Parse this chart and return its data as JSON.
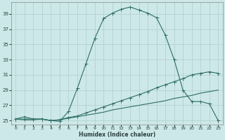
{
  "xlabel": "Humidex (Indice chaleur)",
  "bg_color": "#cde8e8",
  "grid_color": "#b0cccc",
  "line_color": "#2e6e65",
  "ylim": [
    24.5,
    40.5
  ],
  "xlim": [
    -0.5,
    23.5
  ],
  "yticks": [
    25,
    27,
    29,
    31,
    33,
    35,
    37,
    39
  ],
  "xticks": [
    0,
    1,
    2,
    3,
    4,
    5,
    6,
    7,
    8,
    9,
    10,
    11,
    12,
    13,
    14,
    15,
    16,
    17,
    18,
    19,
    20,
    21,
    22,
    23
  ],
  "curve1_x": [
    0,
    1,
    2,
    3,
    4,
    5,
    6,
    7,
    8,
    9,
    10,
    11,
    12,
    13,
    14,
    15,
    16,
    17,
    18,
    19,
    20,
    21,
    22,
    23
  ],
  "curve1_y": [
    25.2,
    25.5,
    25.2,
    25.2,
    25.0,
    24.9,
    26.2,
    29.2,
    32.5,
    35.8,
    38.4,
    39.1,
    39.6,
    39.9,
    39.5,
    39.1,
    38.5,
    36.2,
    33.0,
    29.0,
    27.5,
    27.5,
    27.2,
    25.0
  ],
  "curve2_x": [
    0,
    1,
    2,
    3,
    4,
    5,
    6,
    7,
    8,
    9,
    10,
    11,
    12,
    13,
    14,
    15,
    16,
    17,
    18,
    19,
    20,
    21,
    22,
    23
  ],
  "curve2_y": [
    25.2,
    25.2,
    25.2,
    25.2,
    25.0,
    25.1,
    25.4,
    25.6,
    26.0,
    26.4,
    26.8,
    27.2,
    27.6,
    28.0,
    28.4,
    28.8,
    29.3,
    29.7,
    30.1,
    30.5,
    31.0,
    31.2,
    31.4,
    31.2
  ],
  "curve3_x": [
    0,
    1,
    2,
    3,
    4,
    5,
    6,
    7,
    8,
    9,
    10,
    11,
    12,
    13,
    14,
    15,
    16,
    17,
    18,
    19,
    20,
    21,
    22,
    23
  ],
  "curve3_y": [
    25.2,
    25.1,
    25.1,
    25.2,
    25.0,
    25.1,
    25.3,
    25.5,
    25.7,
    25.9,
    26.1,
    26.4,
    26.6,
    26.8,
    27.0,
    27.2,
    27.4,
    27.6,
    27.9,
    28.1,
    28.3,
    28.6,
    28.8,
    29.0
  ],
  "marker_size": 1.8,
  "line_width": 0.8
}
